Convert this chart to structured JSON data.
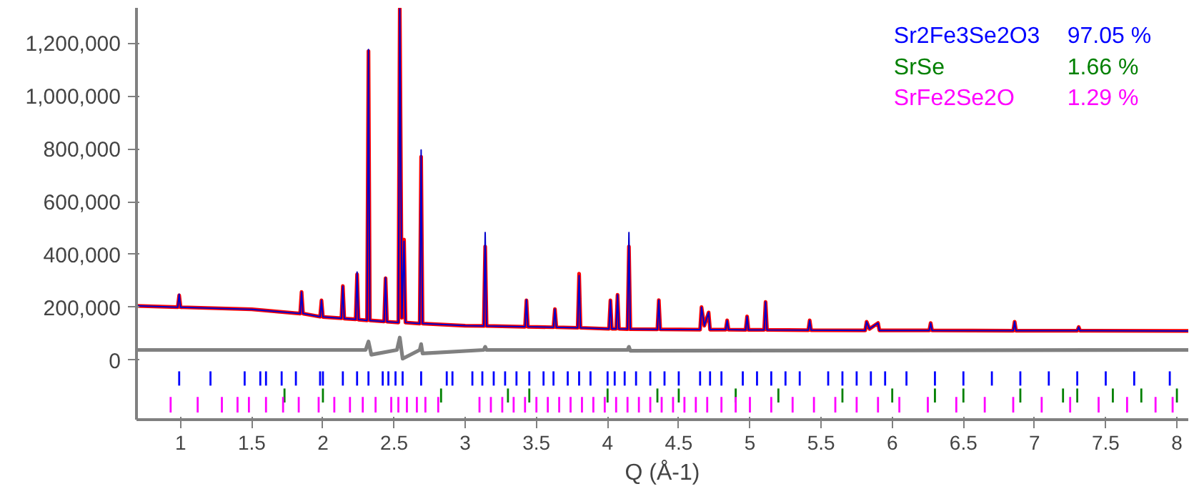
{
  "chart_data": {
    "type": "line",
    "xlabel": "Q (Å-1)",
    "xlim": [
      0.69,
      8.08
    ],
    "ylim": [
      -226000,
      1334000
    ],
    "xticks": [
      1,
      1.5,
      2,
      2.5,
      3,
      3.5,
      4,
      4.5,
      5,
      5.5,
      6,
      6.5,
      7,
      7.5,
      8
    ],
    "yticks": [
      0,
      {
        "value": 200000,
        "label": "200,000"
      },
      {
        "value": 400000,
        "label": "400,000"
      },
      {
        "value": 600000,
        "label": "600,000"
      },
      {
        "value": 800000,
        "label": "800,000"
      },
      {
        "value": 1000000,
        "label": "1,000,000"
      },
      {
        "value": 1200000,
        "label": "1,200,000"
      }
    ],
    "grid": false,
    "annotations": [
      "97.05 %",
      "1.66 %",
      "1.29 %"
    ],
    "series": [
      {
        "color": "#0000cc",
        "x": [
          0.69,
          0.98,
          0.99,
          1.0,
          1.5,
          1.84,
          1.85,
          1.86,
          1.98,
          1.99,
          2.0,
          2.13,
          2.14,
          2.15,
          2.23,
          2.24,
          2.25,
          2.31,
          2.32,
          2.33,
          2.43,
          2.44,
          2.45,
          2.53,
          2.54,
          2.555,
          2.57,
          2.58,
          2.68,
          2.69,
          2.7,
          3.0,
          3.13,
          3.14,
          3.15,
          3.42,
          3.43,
          3.44,
          3.62,
          3.63,
          3.64,
          3.79,
          3.8,
          3.81,
          4.01,
          4.02,
          4.03,
          4.06,
          4.07,
          4.08,
          4.14,
          4.15,
          4.16,
          4.35,
          4.36,
          4.37,
          4.65,
          4.66,
          4.68,
          4.71,
          4.72,
          4.83,
          4.84,
          4.85,
          4.97,
          4.98,
          4.99,
          5.1,
          5.11,
          5.12,
          5.41,
          5.42,
          5.43,
          5.81,
          5.82,
          5.84,
          5.9,
          5.91,
          6.26,
          6.27,
          6.28,
          6.85,
          6.86,
          6.87,
          7.3,
          7.31,
          7.32,
          8.08
        ],
        "values": [
          205000,
          200000,
          249000,
          200000,
          192000,
          176000,
          258000,
          176000,
          164000,
          226000,
          163000,
          158000,
          280000,
          157000,
          154000,
          333000,
          153000,
          150000,
          1176000,
          150000,
          146000,
          312000,
          145000,
          142000,
          1330000,
          160000,
          450000,
          142000,
          138000,
          796000,
          138000,
          130000,
          129000,
          483000,
          129000,
          126000,
          228000,
          126000,
          124000,
          193000,
          124000,
          122000,
          320000,
          122000,
          118000,
          226000,
          118000,
          118000,
          247000,
          118000,
          117000,
          483000,
          117000,
          116000,
          227000,
          116000,
          115000,
          200000,
          130000,
          180000,
          115000,
          115000,
          150000,
          115000,
          114000,
          165000,
          114000,
          114000,
          220000,
          114000,
          113000,
          150000,
          113000,
          112000,
          145000,
          118000,
          140000,
          112000,
          112000,
          140000,
          112000,
          111000,
          145000,
          111000,
          111000,
          125000,
          111000,
          110000
        ]
      },
      {
        "color": "#ff0000",
        "x": [
          0.69,
          0.98,
          0.99,
          1.0,
          1.5,
          1.84,
          1.85,
          1.86,
          1.98,
          1.99,
          2.0,
          2.13,
          2.14,
          2.15,
          2.23,
          2.24,
          2.25,
          2.31,
          2.32,
          2.33,
          2.43,
          2.44,
          2.45,
          2.53,
          2.54,
          2.555,
          2.57,
          2.58,
          2.68,
          2.69,
          2.7,
          3.0,
          3.13,
          3.14,
          3.15,
          3.42,
          3.43,
          3.44,
          3.62,
          3.63,
          3.64,
          3.79,
          3.8,
          3.81,
          4.01,
          4.02,
          4.03,
          4.06,
          4.07,
          4.08,
          4.14,
          4.15,
          4.16,
          4.35,
          4.36,
          4.37,
          4.65,
          4.66,
          4.68,
          4.71,
          4.72,
          4.83,
          4.84,
          4.85,
          4.97,
          4.98,
          4.99,
          5.1,
          5.11,
          5.12,
          5.41,
          5.42,
          5.43,
          5.81,
          5.82,
          5.84,
          5.9,
          5.91,
          6.26,
          6.27,
          6.28,
          6.85,
          6.86,
          6.87,
          7.3,
          7.31,
          7.32,
          8.08
        ],
        "values": [
          205000,
          200000,
          245000,
          200000,
          192000,
          176000,
          258000,
          176000,
          164000,
          226000,
          163000,
          158000,
          280000,
          157000,
          154000,
          325000,
          153000,
          150000,
          1170000,
          150000,
          146000,
          310000,
          145000,
          142000,
          1330000,
          160000,
          456000,
          142000,
          138000,
          770000,
          138000,
          130000,
          129000,
          430000,
          129000,
          126000,
          226000,
          126000,
          124000,
          193000,
          124000,
          122000,
          327000,
          122000,
          118000,
          226000,
          118000,
          118000,
          247000,
          118000,
          117000,
          430000,
          117000,
          116000,
          227000,
          116000,
          115000,
          200000,
          130000,
          180000,
          115000,
          115000,
          150000,
          115000,
          114000,
          165000,
          114000,
          114000,
          220000,
          114000,
          113000,
          150000,
          113000,
          112000,
          145000,
          118000,
          140000,
          112000,
          112000,
          140000,
          112000,
          111000,
          145000,
          111000,
          111000,
          125000,
          111000,
          110000
        ]
      },
      {
        "color": "#808080",
        "x": [
          0.69,
          2.3,
          2.32,
          2.34,
          2.52,
          2.54,
          2.56,
          2.68,
          2.69,
          2.7,
          3.13,
          3.14,
          3.15,
          4.14,
          4.15,
          4.16,
          8.08
        ],
        "values": [
          38000,
          38000,
          70000,
          20000,
          38000,
          85000,
          5000,
          38000,
          60000,
          25000,
          38000,
          50000,
          38000,
          38000,
          50000,
          35000,
          38000
        ]
      },
      {
        "type": "bar",
        "name": "Sr2Fe3Se2O3",
        "color": "#0000ff",
        "base": [
          -97000,
          -97000,
          -97000,
          -97000,
          -97000,
          -97000,
          -97000,
          -97000,
          -97000,
          -97000,
          -97000,
          -97000,
          -97000,
          -97000,
          -97000,
          -97000,
          -97000,
          -97000,
          -97000,
          -97000,
          -97000,
          -97000,
          -97000,
          -97000,
          -97000,
          -97000,
          -97000,
          -97000,
          -97000,
          -97000,
          -97000,
          -97000,
          -97000,
          -97000,
          -97000,
          -97000,
          -97000,
          -97000,
          -97000,
          -97000,
          -97000,
          -97000,
          -97000,
          -97000,
          -97000,
          -97000,
          -97000,
          -97000,
          -97000,
          -97000,
          -97000,
          -97000,
          -97000,
          -97000,
          -97000,
          -97000,
          -97000,
          -97000,
          -97000,
          -97000
        ],
        "x": [
          0.99,
          1.21,
          1.45,
          1.56,
          1.6,
          1.71,
          1.81,
          1.98,
          2.0,
          2.14,
          2.24,
          2.32,
          2.42,
          2.46,
          2.51,
          2.56,
          2.69,
          2.87,
          2.91,
          3.05,
          3.12,
          3.2,
          3.28,
          3.36,
          3.45,
          3.55,
          3.62,
          3.72,
          3.8,
          3.88,
          4.0,
          4.05,
          4.12,
          4.2,
          4.3,
          4.4,
          4.5,
          4.65,
          4.72,
          4.8,
          4.95,
          5.05,
          5.15,
          5.25,
          5.35,
          5.55,
          5.65,
          5.75,
          5.85,
          5.95,
          6.1,
          6.3,
          6.5,
          6.7,
          6.9,
          7.1,
          7.3,
          7.5,
          7.7,
          7.95
        ],
        "values": [
          54000,
          54000,
          54000,
          54000,
          54000,
          54000,
          54000,
          54000,
          54000,
          54000,
          54000,
          54000,
          54000,
          54000,
          54000,
          54000,
          54000,
          54000,
          54000,
          54000,
          54000,
          54000,
          54000,
          54000,
          54000,
          54000,
          54000,
          54000,
          54000,
          54000,
          54000,
          54000,
          54000,
          54000,
          54000,
          54000,
          54000,
          54000,
          54000,
          54000,
          54000,
          54000,
          54000,
          54000,
          54000,
          54000,
          54000,
          54000,
          54000,
          54000,
          54000,
          54000,
          54000,
          54000,
          54000,
          54000,
          54000,
          54000,
          54000,
          54000
        ]
      },
      {
        "type": "bar",
        "name": "SrSe",
        "color": "#008000",
        "base": [
          -161000,
          -161000,
          -161000,
          -161000,
          -161000,
          -161000,
          -161000,
          -161000,
          -161000,
          -161000,
          -161000,
          -161000,
          -161000,
          -161000,
          -161000,
          -161000,
          -161000,
          -161000,
          -161000,
          -161000
        ],
        "x": [
          1.73,
          2.0,
          2.83,
          3.3,
          3.45,
          4.0,
          4.35,
          4.5,
          4.9,
          5.2,
          5.65,
          6.0,
          6.3,
          6.5,
          6.9,
          7.2,
          7.3,
          7.55,
          7.75,
          8.0
        ],
        "values": [
          53000,
          53000,
          53000,
          53000,
          53000,
          53000,
          53000,
          53000,
          53000,
          53000,
          53000,
          53000,
          53000,
          53000,
          53000,
          53000,
          53000,
          53000,
          53000,
          53000
        ]
      },
      {
        "type": "bar",
        "name": "SrFe2Se2O",
        "color": "#ff00ff",
        "base": [
          -199000,
          -199000,
          -199000,
          -199000,
          -199000,
          -199000,
          -199000,
          -199000,
          -199000,
          -199000,
          -199000,
          -199000,
          -199000,
          -199000,
          -199000,
          -199000,
          -199000,
          -199000,
          -199000,
          -199000,
          -199000,
          -199000,
          -199000,
          -199000,
          -199000,
          -199000,
          -199000,
          -199000,
          -199000,
          -199000,
          -199000,
          -199000,
          -199000,
          -199000,
          -199000,
          -199000,
          -199000,
          -199000,
          -199000,
          -199000,
          -199000,
          -199000,
          -199000,
          -199000,
          -199000,
          -199000,
          -199000,
          -199000,
          -199000,
          -199000,
          -199000,
          -199000,
          -199000,
          -199000,
          -199000,
          -199000,
          -199000,
          -199000,
          -199000,
          -199000
        ],
        "x": [
          0.93,
          1.12,
          1.29,
          1.4,
          1.48,
          1.6,
          1.72,
          1.83,
          1.97,
          2.08,
          2.19,
          2.28,
          2.37,
          2.48,
          2.53,
          2.59,
          2.66,
          2.72,
          2.81,
          3.1,
          3.18,
          3.26,
          3.34,
          3.42,
          3.5,
          3.58,
          3.66,
          3.74,
          3.82,
          3.9,
          3.98,
          4.06,
          4.14,
          4.22,
          4.3,
          4.38,
          4.46,
          4.54,
          4.62,
          4.7,
          4.8,
          4.9,
          5.0,
          5.15,
          5.3,
          5.45,
          5.6,
          5.75,
          5.9,
          6.05,
          6.25,
          6.45,
          6.65,
          6.85,
          7.05,
          7.25,
          7.45,
          7.65,
          7.85,
          7.97
        ],
        "values": [
          59000,
          59000,
          59000,
          59000,
          59000,
          59000,
          59000,
          59000,
          59000,
          59000,
          59000,
          59000,
          59000,
          59000,
          59000,
          59000,
          59000,
          59000,
          59000,
          59000,
          59000,
          59000,
          59000,
          59000,
          59000,
          59000,
          59000,
          59000,
          59000,
          59000,
          59000,
          59000,
          59000,
          59000,
          59000,
          59000,
          59000,
          59000,
          59000,
          59000,
          59000,
          59000,
          59000,
          59000,
          59000,
          59000,
          59000,
          59000,
          59000,
          59000,
          59000,
          59000,
          59000,
          59000,
          59000,
          59000,
          59000,
          59000,
          59000,
          59000
        ]
      }
    ]
  }
}
